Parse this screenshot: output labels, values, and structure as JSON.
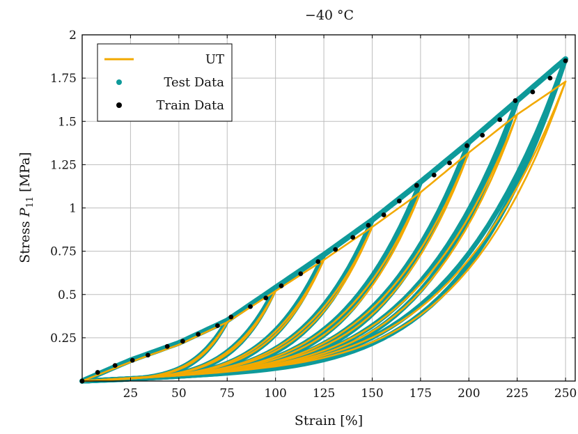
{
  "chart_data": {
    "type": "line",
    "title": "−40 °C",
    "xlabel": "Strain [%]",
    "ylabel_main": "Stress ",
    "ylabel_var": "P",
    "ylabel_sub": "11",
    "ylabel_unit": " [MPa]",
    "xlim": [
      0,
      255
    ],
    "ylim": [
      0,
      2
    ],
    "x_ticks": [
      25,
      50,
      75,
      100,
      125,
      150,
      175,
      200,
      225,
      250
    ],
    "x_tick_labels": [
      "25",
      "50",
      "75",
      "100",
      "125",
      "150",
      "175",
      "200",
      "225",
      "250"
    ],
    "y_ticks": [
      0.25,
      0.5,
      0.75,
      1,
      1.25,
      1.5,
      1.75,
      2
    ],
    "y_tick_labels": [
      "0.25",
      "0.5",
      "0.75",
      "1",
      "1.25",
      "1.5",
      "1.75",
      "2"
    ],
    "grid": true,
    "legend_position": "top-left",
    "colors": {
      "ut": "#f2a900",
      "test": "#0e9a9a",
      "train": "#000000"
    },
    "legend": [
      {
        "key": "ut",
        "label": "UT",
        "marker": "line"
      },
      {
        "key": "test",
        "label": "Test Data",
        "marker": "dot"
      },
      {
        "key": "train",
        "label": "Train Data",
        "marker": "dot"
      }
    ],
    "envelope_test": [
      [
        0,
        0
      ],
      [
        25,
        0.12
      ],
      [
        50,
        0.22
      ],
      [
        75,
        0.35
      ],
      [
        100,
        0.54
      ],
      [
        125,
        0.73
      ],
      [
        150,
        0.93
      ],
      [
        175,
        1.15
      ],
      [
        200,
        1.38
      ],
      [
        225,
        1.62
      ],
      [
        250,
        1.86
      ]
    ],
    "envelope_ut": [
      [
        0,
        0
      ],
      [
        25,
        0.11
      ],
      [
        50,
        0.21
      ],
      [
        75,
        0.34
      ],
      [
        100,
        0.52
      ],
      [
        125,
        0.7
      ],
      [
        150,
        0.89
      ],
      [
        175,
        1.09
      ],
      [
        200,
        1.32
      ],
      [
        225,
        1.54
      ],
      [
        250,
        1.73
      ]
    ],
    "cycles": [
      {
        "max_strain": 75,
        "peak_test": 0.35,
        "peak_ut": 0.34,
        "reload_end": 0.055,
        "unload_end": 0.03
      },
      {
        "max_strain": 100,
        "peak_test": 0.54,
        "peak_ut": 0.52,
        "reload_end": 0.085,
        "unload_end": 0.045
      },
      {
        "max_strain": 125,
        "peak_test": 0.73,
        "peak_ut": 0.7,
        "reload_end": 0.11,
        "unload_end": 0.06
      },
      {
        "max_strain": 150,
        "peak_test": 0.93,
        "peak_ut": 0.89,
        "reload_end": 0.14,
        "unload_end": 0.075
      },
      {
        "max_strain": 175,
        "peak_test": 1.15,
        "peak_ut": 1.09,
        "reload_end": 0.16,
        "unload_end": 0.09
      },
      {
        "max_strain": 200,
        "peak_test": 1.38,
        "peak_ut": 1.32,
        "reload_end": 0.19,
        "unload_end": 0.1
      },
      {
        "max_strain": 225,
        "peak_test": 1.62,
        "peak_ut": 1.54,
        "reload_end": 0.21,
        "unload_end": 0.115
      },
      {
        "max_strain": 250,
        "peak_test": 1.86,
        "peak_ut": 1.73,
        "reload_end": 0.23,
        "unload_end": 0.13
      }
    ],
    "train_points": [
      [
        0,
        0
      ],
      [
        8,
        0.05
      ],
      [
        17,
        0.09
      ],
      [
        26,
        0.12
      ],
      [
        34,
        0.15
      ],
      [
        44,
        0.2
      ],
      [
        52,
        0.23
      ],
      [
        60,
        0.27
      ],
      [
        70,
        0.32
      ],
      [
        77,
        0.37
      ],
      [
        87,
        0.43
      ],
      [
        95,
        0.48
      ],
      [
        103,
        0.55
      ],
      [
        113,
        0.62
      ],
      [
        122,
        0.69
      ],
      [
        131,
        0.76
      ],
      [
        140,
        0.83
      ],
      [
        148,
        0.9
      ],
      [
        156,
        0.96
      ],
      [
        164,
        1.04
      ],
      [
        173,
        1.13
      ],
      [
        182,
        1.19
      ],
      [
        190,
        1.26
      ],
      [
        199,
        1.36
      ],
      [
        207,
        1.42
      ],
      [
        216,
        1.51
      ],
      [
        224,
        1.62
      ],
      [
        233,
        1.67
      ],
      [
        242,
        1.75
      ],
      [
        250,
        1.85
      ]
    ]
  }
}
